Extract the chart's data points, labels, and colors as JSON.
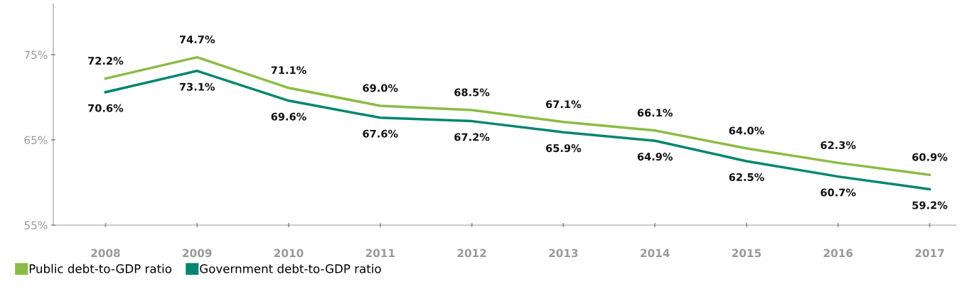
{
  "chart_data": {
    "type": "line",
    "categories": [
      "2008",
      "2009",
      "2010",
      "2011",
      "2012",
      "2013",
      "2014",
      "2015",
      "2016",
      "2017"
    ],
    "series": [
      {
        "name": "Public debt-to-GDP ratio",
        "color": "#8cbb45",
        "values": [
          72.2,
          74.7,
          71.1,
          69.0,
          68.5,
          67.1,
          66.1,
          64.0,
          62.3,
          60.9
        ],
        "value_labels": [
          "72.2%",
          "74.7%",
          "71.1%",
          "69.0%",
          "68.5%",
          "67.1%",
          "66.1%",
          "64.0%",
          "62.3%",
          "60.9%"
        ]
      },
      {
        "name": "Government debt-to-GDP ratio",
        "color": "#00866e",
        "values": [
          70.6,
          73.1,
          69.6,
          67.6,
          67.2,
          65.9,
          64.9,
          62.5,
          60.7,
          59.2
        ],
        "value_labels": [
          "70.6%",
          "73.1%",
          "69.6%",
          "67.6%",
          "67.2%",
          "65.9%",
          "64.9%",
          "62.5%",
          "60.7%",
          "59.2%"
        ]
      }
    ],
    "ylim": [
      55,
      81
    ],
    "yticks": [
      {
        "value": 55,
        "label": "55%"
      },
      {
        "value": 65,
        "label": "65%"
      },
      {
        "value": 75,
        "label": "75%"
      }
    ],
    "grid": false,
    "legend": "bottom left",
    "marker": "none",
    "line_style": "solid"
  }
}
